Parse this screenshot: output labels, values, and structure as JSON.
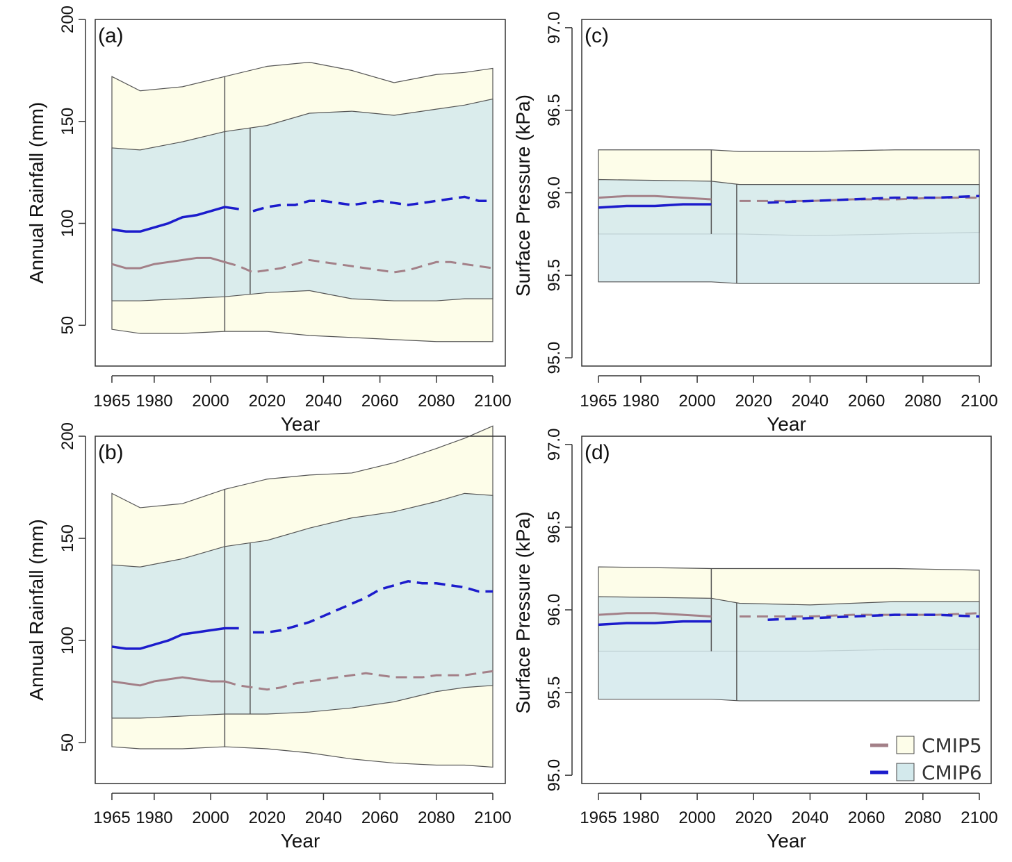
{
  "figure": {
    "legend": [
      {
        "name": "CMIP5",
        "line_color": "#a38088",
        "fill_color": "#fdfde9",
        "line_style": "solid"
      },
      {
        "name": "CMIP6",
        "line_color": "#1c1ccc",
        "fill_color": "#d3e9ec",
        "line_style": "solid"
      }
    ]
  },
  "chart_data": [
    {
      "type": "area",
      "panel_label": "(a)",
      "xlabel": "Year",
      "ylabel": "Annual Rainfall (mm)",
      "xlim": [
        1965,
        2100
      ],
      "ylim": [
        30,
        200
      ],
      "xticks": [
        1965,
        1980,
        2000,
        2020,
        2040,
        2060,
        2080,
        2100
      ],
      "yticks": [
        50,
        100,
        150,
        200
      ],
      "historical_end": {
        "CMIP5": 2005,
        "CMIP6": 2014
      },
      "series": [
        {
          "name": "CMIP5",
          "role": "range",
          "x": [
            1965,
            1975,
            1990,
            2005,
            2020,
            2035,
            2050,
            2065,
            2080,
            2090,
            2100
          ],
          "upper": [
            172,
            165,
            167,
            172,
            177,
            179,
            175,
            169,
            173,
            174,
            176
          ],
          "lower": [
            48,
            46,
            46,
            47,
            47,
            45,
            44,
            43,
            42,
            42,
            42
          ]
        },
        {
          "name": "CMIP6",
          "role": "range",
          "x": [
            1965,
            1975,
            1990,
            2005,
            2020,
            2035,
            2050,
            2065,
            2080,
            2090,
            2100
          ],
          "upper": [
            137,
            136,
            140,
            145,
            148,
            154,
            155,
            153,
            156,
            158,
            161
          ],
          "lower": [
            62,
            62,
            63,
            64,
            66,
            67,
            63,
            62,
            62,
            63,
            63
          ]
        },
        {
          "name": "CMIP5",
          "role": "mean",
          "x": [
            1965,
            1970,
            1975,
            1980,
            1985,
            1990,
            1995,
            2000,
            2005,
            2010,
            2015,
            2020,
            2025,
            2030,
            2035,
            2040,
            2045,
            2050,
            2055,
            2060,
            2065,
            2070,
            2075,
            2080,
            2085,
            2090,
            2095,
            2100
          ],
          "y": [
            80,
            78,
            78,
            80,
            81,
            82,
            83,
            83,
            81,
            79,
            76,
            77,
            78,
            80,
            82,
            81,
            80,
            79,
            78,
            77,
            76,
            77,
            79,
            81,
            81,
            80,
            79,
            78
          ]
        },
        {
          "name": "CMIP6",
          "role": "mean",
          "x": [
            1965,
            1970,
            1975,
            1980,
            1985,
            1990,
            1995,
            2000,
            2005,
            2010,
            2015,
            2020,
            2025,
            2030,
            2035,
            2040,
            2045,
            2050,
            2055,
            2060,
            2065,
            2070,
            2075,
            2080,
            2085,
            2090,
            2095,
            2100
          ],
          "y": [
            97,
            96,
            96,
            98,
            100,
            103,
            104,
            106,
            108,
            107,
            106,
            108,
            109,
            109,
            111,
            111,
            110,
            109,
            110,
            111,
            110,
            109,
            110,
            111,
            112,
            113,
            111,
            111
          ]
        }
      ]
    },
    {
      "type": "area",
      "panel_label": "(b)",
      "xlabel": "Year",
      "ylabel": "Annual Rainfall (mm)",
      "xlim": [
        1965,
        2100
      ],
      "ylim": [
        30,
        200
      ],
      "xticks": [
        1965,
        1980,
        2000,
        2020,
        2040,
        2060,
        2080,
        2100
      ],
      "yticks": [
        50,
        100,
        150,
        200
      ],
      "historical_end": {
        "CMIP5": 2005,
        "CMIP6": 2014
      },
      "series": [
        {
          "name": "CMIP5",
          "role": "range",
          "x": [
            1965,
            1975,
            1990,
            2005,
            2020,
            2035,
            2050,
            2065,
            2080,
            2090,
            2100
          ],
          "upper": [
            172,
            165,
            167,
            174,
            179,
            181,
            182,
            187,
            194,
            199,
            205
          ],
          "lower": [
            48,
            47,
            47,
            48,
            47,
            45,
            42,
            40,
            39,
            39,
            38
          ]
        },
        {
          "name": "CMIP6",
          "role": "range",
          "x": [
            1965,
            1975,
            1990,
            2005,
            2020,
            2035,
            2050,
            2065,
            2080,
            2090,
            2100
          ],
          "upper": [
            137,
            136,
            140,
            146,
            149,
            155,
            160,
            163,
            168,
            172,
            171
          ],
          "lower": [
            62,
            62,
            63,
            64,
            64,
            65,
            67,
            70,
            75,
            77,
            78
          ]
        },
        {
          "name": "CMIP5",
          "role": "mean",
          "x": [
            1965,
            1970,
            1975,
            1980,
            1985,
            1990,
            1995,
            2000,
            2005,
            2010,
            2015,
            2020,
            2025,
            2030,
            2035,
            2040,
            2045,
            2050,
            2055,
            2060,
            2065,
            2070,
            2075,
            2080,
            2085,
            2090,
            2095,
            2100
          ],
          "y": [
            80,
            79,
            78,
            80,
            81,
            82,
            81,
            80,
            80,
            78,
            77,
            76,
            77,
            79,
            80,
            81,
            82,
            83,
            84,
            83,
            82,
            82,
            82,
            83,
            83,
            83,
            84,
            85
          ]
        },
        {
          "name": "CMIP6",
          "role": "mean",
          "x": [
            1965,
            1970,
            1975,
            1980,
            1985,
            1990,
            1995,
            2000,
            2005,
            2010,
            2015,
            2020,
            2025,
            2030,
            2035,
            2040,
            2045,
            2050,
            2055,
            2060,
            2065,
            2070,
            2075,
            2080,
            2085,
            2090,
            2095,
            2100
          ],
          "y": [
            97,
            96,
            96,
            98,
            100,
            103,
            104,
            105,
            106,
            106,
            104,
            104,
            105,
            107,
            109,
            112,
            115,
            118,
            121,
            125,
            127,
            129,
            128,
            128,
            127,
            126,
            124,
            124
          ]
        }
      ]
    },
    {
      "type": "area",
      "panel_label": "(c)",
      "xlabel": "Year",
      "ylabel": "Surface Pressure (kPa)",
      "xlim": [
        1965,
        2100
      ],
      "ylim": [
        94.95,
        97.05
      ],
      "xticks": [
        1965,
        1980,
        2000,
        2020,
        2040,
        2060,
        2080,
        2100
      ],
      "yticks": [
        "95.0",
        "95.5",
        "96.0",
        "96.5",
        "97.0"
      ],
      "historical_end": {
        "CMIP5": 2005,
        "CMIP6": 2014
      },
      "series": [
        {
          "name": "CMIP5",
          "role": "range",
          "x": [
            1965,
            2005,
            2015,
            2040,
            2070,
            2100
          ],
          "upper": [
            96.26,
            96.26,
            96.25,
            96.25,
            96.26,
            96.26
          ],
          "lower": [
            95.75,
            95.75,
            95.75,
            95.74,
            95.75,
            95.76
          ]
        },
        {
          "name": "CMIP6",
          "role": "range",
          "x": [
            1965,
            2005,
            2015,
            2040,
            2070,
            2100
          ],
          "upper": [
            96.08,
            96.07,
            96.05,
            96.05,
            96.05,
            96.05
          ],
          "lower": [
            95.46,
            95.46,
            95.45,
            95.45,
            95.45,
            95.45
          ]
        },
        {
          "name": "CMIP5",
          "role": "mean",
          "x": [
            1965,
            1975,
            1985,
            1995,
            2005,
            2015,
            2025,
            2040,
            2055,
            2070,
            2085,
            2100
          ],
          "y": [
            95.97,
            95.98,
            95.98,
            95.97,
            95.96,
            95.95,
            95.95,
            95.95,
            95.96,
            95.96,
            95.97,
            95.97
          ]
        },
        {
          "name": "CMIP6",
          "role": "mean",
          "x": [
            1965,
            1975,
            1985,
            1995,
            2005,
            2015,
            2025,
            2040,
            2055,
            2070,
            2085,
            2100
          ],
          "y": [
            95.91,
            95.92,
            95.92,
            95.93,
            95.93,
            95.94,
            95.94,
            95.95,
            95.96,
            95.97,
            95.97,
            95.98
          ]
        }
      ]
    },
    {
      "type": "area",
      "panel_label": "(d)",
      "xlabel": "Year",
      "ylabel": "Surface Pressure (kPa)",
      "xlim": [
        1965,
        2100
      ],
      "ylim": [
        94.95,
        97.05
      ],
      "xticks": [
        1965,
        1980,
        2000,
        2020,
        2040,
        2060,
        2080,
        2100
      ],
      "yticks": [
        "95.0",
        "95.5",
        "96.0",
        "96.5",
        "97.0"
      ],
      "historical_end": {
        "CMIP5": 2005,
        "CMIP6": 2014
      },
      "series": [
        {
          "name": "CMIP5",
          "role": "range",
          "x": [
            1965,
            2005,
            2015,
            2040,
            2070,
            2100
          ],
          "upper": [
            96.26,
            96.25,
            96.25,
            96.25,
            96.25,
            96.24
          ],
          "lower": [
            95.75,
            95.75,
            95.75,
            95.75,
            95.76,
            95.76
          ]
        },
        {
          "name": "CMIP6",
          "role": "range",
          "x": [
            1965,
            2005,
            2015,
            2040,
            2070,
            2100
          ],
          "upper": [
            96.08,
            96.07,
            96.04,
            96.03,
            96.05,
            96.05
          ],
          "lower": [
            95.46,
            95.46,
            95.45,
            95.45,
            95.45,
            95.45
          ]
        },
        {
          "name": "CMIP5",
          "role": "mean",
          "x": [
            1965,
            1975,
            1985,
            1995,
            2005,
            2015,
            2025,
            2040,
            2055,
            2070,
            2085,
            2100
          ],
          "y": [
            95.97,
            95.98,
            95.98,
            95.97,
            95.96,
            95.96,
            95.96,
            95.96,
            95.97,
            95.97,
            95.97,
            95.98
          ]
        },
        {
          "name": "CMIP6",
          "role": "mean",
          "x": [
            1965,
            1975,
            1985,
            1995,
            2005,
            2015,
            2025,
            2040,
            2055,
            2070,
            2085,
            2100
          ],
          "y": [
            95.91,
            95.92,
            95.92,
            95.93,
            95.93,
            95.94,
            95.94,
            95.95,
            95.96,
            95.97,
            95.97,
            95.96
          ]
        }
      ]
    }
  ]
}
